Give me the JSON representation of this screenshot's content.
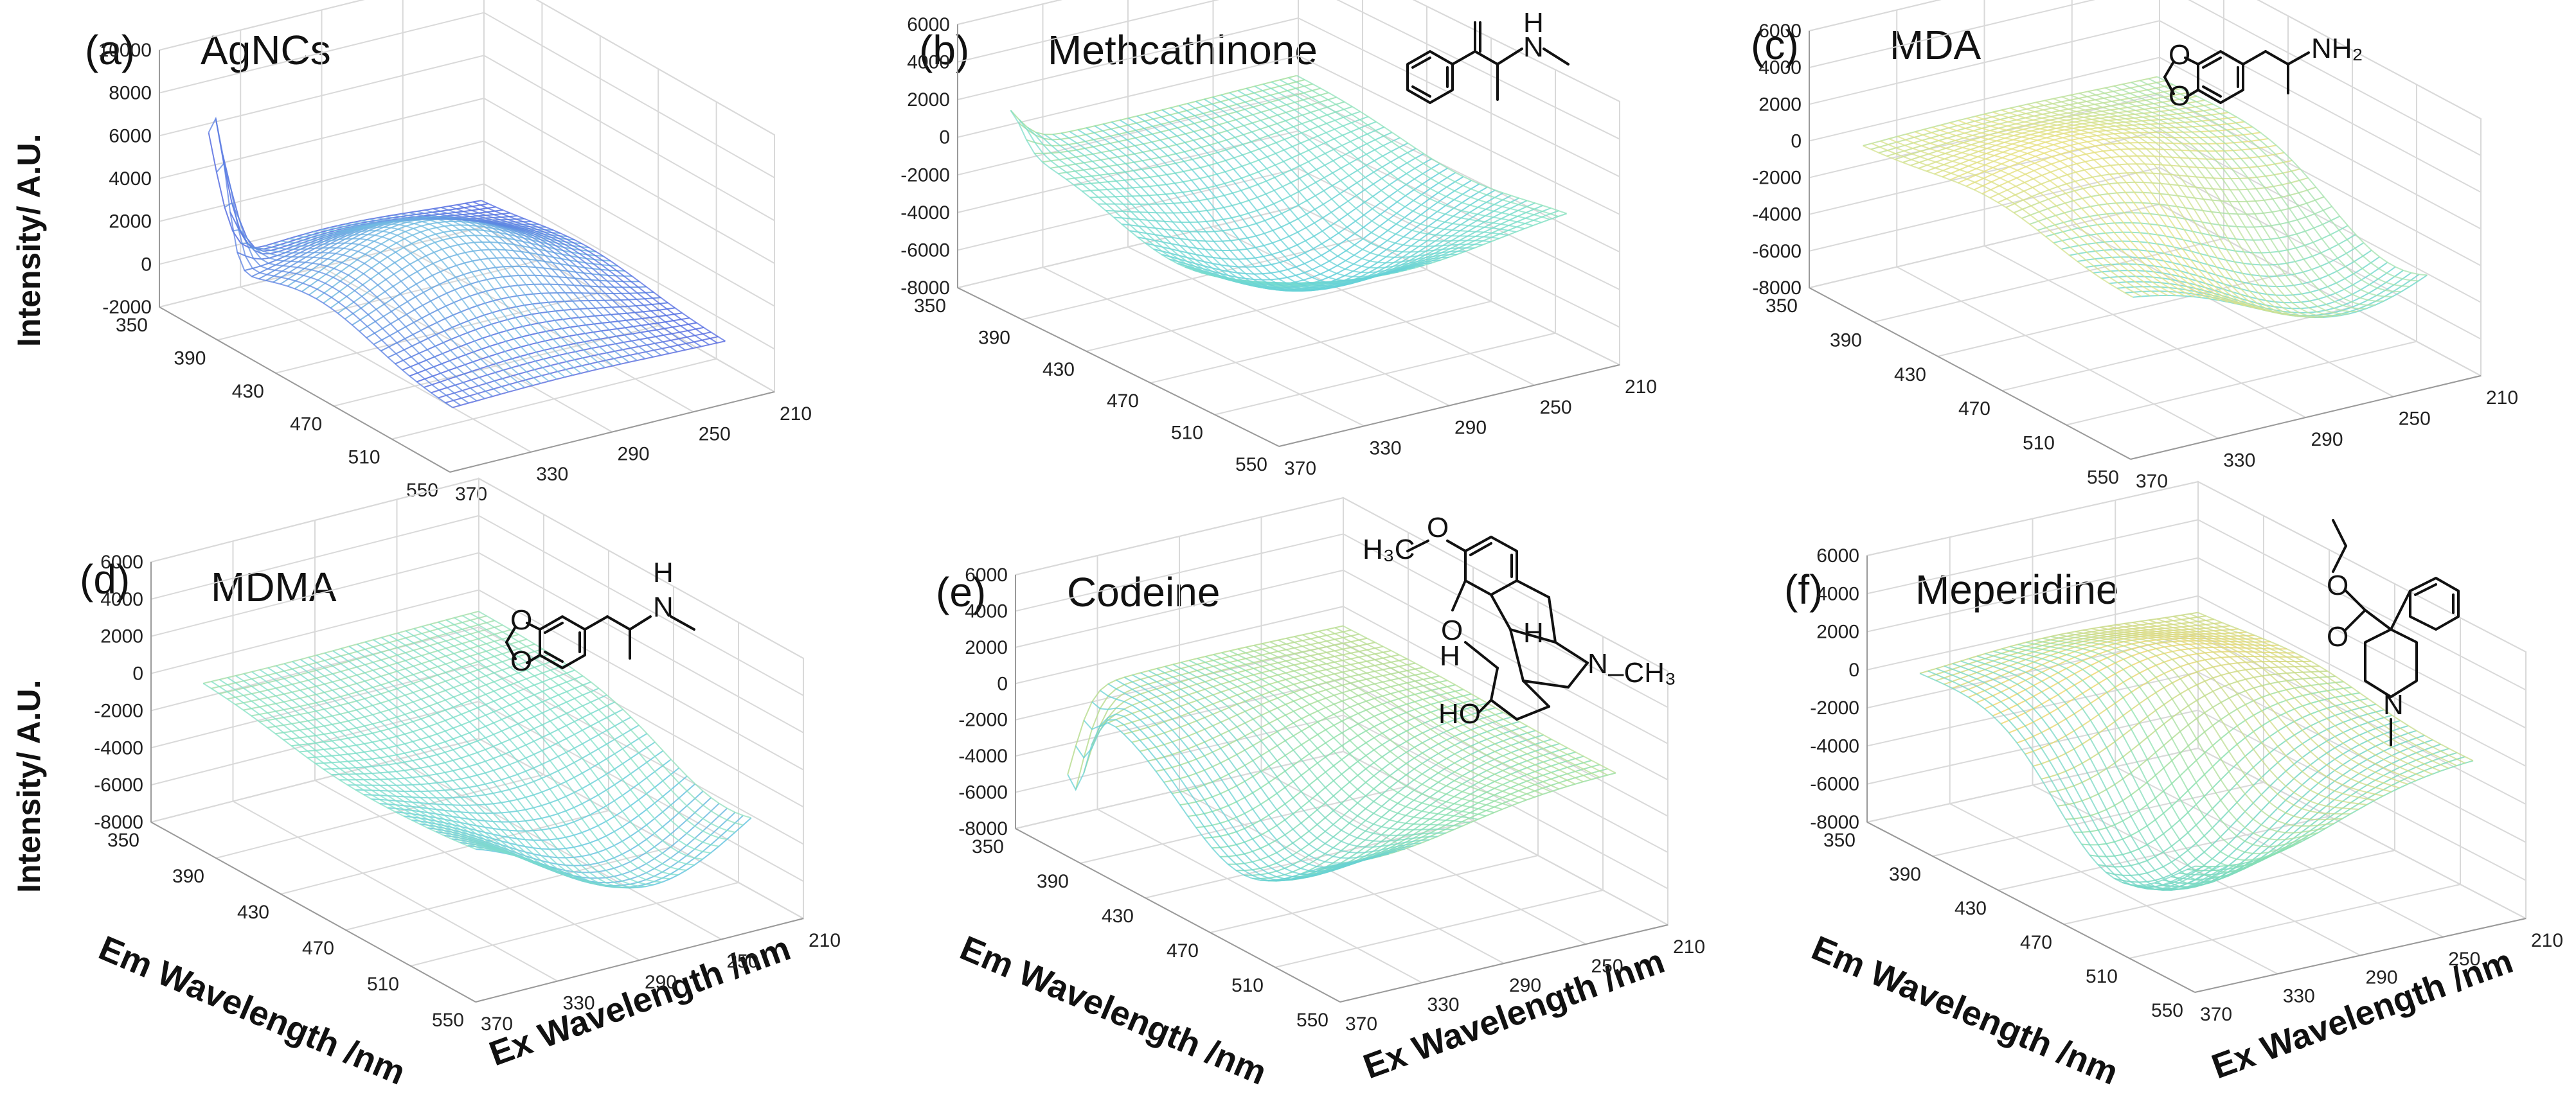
{
  "panels": [
    {
      "label": "(a)",
      "name": "AgNCs",
      "z_ticks": [
        "10000",
        "8000",
        "6000",
        "4000",
        "2000",
        "0",
        "-2000"
      ],
      "z_range": [
        -2000,
        10000
      ],
      "ylabel": "Intensity/ A.U.",
      "em_ticks": [
        "350",
        "390",
        "430",
        "470",
        "510",
        "550"
      ],
      "ex_ticks": [
        "370",
        "330",
        "290",
        "250",
        "210"
      ],
      "em_label": "",
      "ex_label": "",
      "peak": {
        "em": 370,
        "ex": 365,
        "intensity": 9500
      },
      "colormap": "lavender-blue"
    },
    {
      "label": "(b)",
      "name": "Methcathinone",
      "z_ticks": [
        "6000",
        "4000",
        "2000",
        "0",
        "-2000",
        "-4000",
        "-6000",
        "-8000"
      ],
      "z_range": [
        -8000,
        6000
      ],
      "ylabel": "",
      "em_ticks": [
        "350",
        "390",
        "430",
        "470",
        "510",
        "550"
      ],
      "ex_ticks": [
        "370",
        "330",
        "290",
        "250",
        "210"
      ],
      "em_label": "",
      "ex_label": "",
      "colormap": "cyan-teal"
    },
    {
      "label": "(c)",
      "name": "MDA",
      "z_ticks": [
        "6000",
        "4000",
        "2000",
        "0",
        "-2000",
        "-4000",
        "-6000",
        "-8000"
      ],
      "z_range": [
        -8000,
        6000
      ],
      "ylabel": "",
      "em_ticks": [
        "350",
        "390",
        "430",
        "470",
        "510",
        "550"
      ],
      "ex_ticks": [
        "370",
        "330",
        "290",
        "250",
        "210"
      ],
      "em_label": "",
      "ex_label": "",
      "colormap": "cyan-yellow"
    },
    {
      "label": "(d)",
      "name": "MDMA",
      "z_ticks": [
        "6000",
        "4000",
        "2000",
        "0",
        "-2000",
        "-4000",
        "-6000",
        "-8000"
      ],
      "z_range": [
        -8000,
        6000
      ],
      "ylabel": "Intensity/ A.U.",
      "em_ticks": [
        "350",
        "390",
        "430",
        "470",
        "510",
        "550"
      ],
      "ex_ticks": [
        "370",
        "330",
        "290",
        "250",
        "210"
      ],
      "em_label": "Em Wavelength /nm",
      "ex_label": "Ex Wavelength /nm",
      "colormap": "cyan-violet"
    },
    {
      "label": "(e)",
      "name": "Codeine",
      "z_ticks": [
        "6000",
        "4000",
        "2000",
        "0",
        "-2000",
        "-4000",
        "-6000",
        "-8000"
      ],
      "z_range": [
        -8000,
        6000
      ],
      "ylabel": "",
      "em_ticks": [
        "350",
        "390",
        "430",
        "470",
        "510",
        "550"
      ],
      "ex_ticks": [
        "370",
        "330",
        "290",
        "250",
        "210"
      ],
      "em_label": "Em Wavelength /nm",
      "ex_label": "Ex Wavelength /nm",
      "colormap": "teal-yellow-violet"
    },
    {
      "label": "(f)",
      "name": "Meperidine",
      "z_ticks": [
        "6000",
        "4000",
        "2000",
        "0",
        "-2000",
        "-4000",
        "-6000",
        "-8000"
      ],
      "z_range": [
        -8000,
        6000
      ],
      "ylabel": "",
      "em_ticks": [
        "350",
        "390",
        "430",
        "470",
        "510",
        "550"
      ],
      "ex_ticks": [
        "370",
        "330",
        "290",
        "250",
        "210"
      ],
      "em_label": "Em Wavelength /nm",
      "ex_label": "Ex Wavelength /nm",
      "colormap": "teal-yellow-violet"
    }
  ],
  "molecules": {
    "methcathinone": {
      "amine": "H",
      "n": "N"
    },
    "mda": {
      "amine": "NH₂"
    },
    "mdma": {
      "amine": "H",
      "n": "N"
    },
    "codeine": {
      "methoxy": "H₃C",
      "o1": "O",
      "o2": "O",
      "h1": "H",
      "h2": "H",
      "n": "N",
      "ch3": "–CH₃",
      "ho": "HO"
    },
    "meperidine": {
      "n": "N"
    }
  },
  "chart_data": [
    {
      "type": "surface",
      "title": "AgNCs",
      "xlabel": "Em Wavelength /nm",
      "ylabel": "Ex Wavelength /nm",
      "zlabel": "Intensity/ A.U.",
      "em_range": [
        350,
        550
      ],
      "ex_range": [
        210,
        370
      ],
      "zlim": [
        -2000,
        10000
      ],
      "features": [
        {
          "em": 370,
          "ex": 365,
          "intensity": 9500
        },
        {
          "em": 440,
          "ex": 300,
          "intensity": 3500
        }
      ]
    },
    {
      "type": "surface",
      "title": "Methcathinone",
      "xlabel": "Em Wavelength /nm",
      "ylabel": "Ex Wavelength /nm",
      "zlabel": "Intensity/ A.U.",
      "em_range": [
        350,
        550
      ],
      "ex_range": [
        210,
        370
      ],
      "zlim": [
        -8000,
        6000
      ],
      "features": [
        {
          "em": 365,
          "ex": 365,
          "intensity": 2500
        },
        {
          "em": 470,
          "ex": 300,
          "intensity": -4500
        }
      ]
    },
    {
      "type": "surface",
      "title": "MDA",
      "xlabel": "Em Wavelength /nm",
      "ylabel": "Ex Wavelength /nm",
      "zlabel": "Intensity/ A.U.",
      "em_range": [
        350,
        550
      ],
      "ex_range": [
        210,
        370
      ],
      "zlim": [
        -8000,
        6000
      ],
      "features": [
        {
          "em": 450,
          "ex": 300,
          "intensity": 2500
        },
        {
          "em": 510,
          "ex": 260,
          "intensity": -5000
        }
      ]
    },
    {
      "type": "surface",
      "title": "MDMA",
      "xlabel": "Em Wavelength /nm",
      "ylabel": "Ex Wavelength /nm",
      "zlabel": "Intensity/ A.U.",
      "em_range": [
        350,
        550
      ],
      "ex_range": [
        210,
        370
      ],
      "zlim": [
        -8000,
        6000
      ],
      "features": [
        {
          "em": 450,
          "ex": 320,
          "intensity": -1500
        },
        {
          "em": 520,
          "ex": 270,
          "intensity": -5500
        }
      ]
    },
    {
      "type": "surface",
      "title": "Codeine",
      "xlabel": "Em Wavelength /nm",
      "ylabel": "Ex Wavelength /nm",
      "zlabel": "Intensity/ A.U.",
      "em_range": [
        350,
        550
      ],
      "ex_range": [
        210,
        370
      ],
      "zlim": [
        -8000,
        6000
      ],
      "features": [
        {
          "em": 440,
          "ex": 310,
          "intensity": 1500
        },
        {
          "em": 470,
          "ex": 340,
          "intensity": -6000
        },
        {
          "em": 370,
          "ex": 365,
          "intensity": -7000
        }
      ]
    },
    {
      "type": "surface",
      "title": "Meperidine",
      "xlabel": "Em Wavelength /nm",
      "ylabel": "Ex Wavelength /nm",
      "zlabel": "Intensity/ A.U.",
      "em_range": [
        350,
        550
      ],
      "ex_range": [
        210,
        370
      ],
      "zlim": [
        -8000,
        6000
      ],
      "features": [
        {
          "em": 440,
          "ex": 300,
          "intensity": 4000
        },
        {
          "em": 480,
          "ex": 330,
          "intensity": -7500
        }
      ]
    }
  ]
}
